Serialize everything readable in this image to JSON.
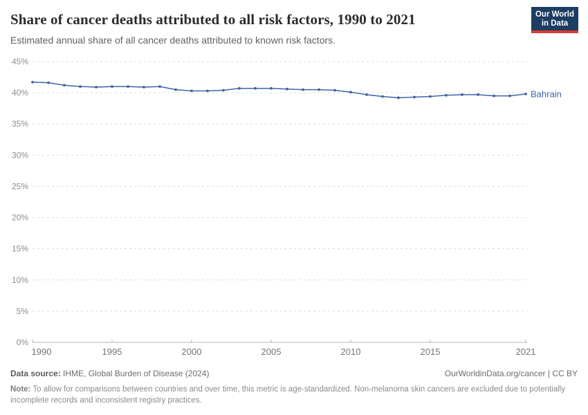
{
  "header": {
    "title": "Share of cancer deaths attributed to all risk factors, 1990 to 2021",
    "subtitle": "Estimated annual share of all cancer deaths attributed to known risk factors.",
    "logo": {
      "line1": "Our World",
      "line2": "in Data",
      "bg_color": "#1d3d63",
      "accent_color": "#d73c34"
    }
  },
  "chart_data": {
    "type": "line",
    "title": "Share of cancer deaths attributed to all risk factors, 1990 to 2021",
    "xlabel": "",
    "ylabel": "",
    "xlim": [
      1990,
      2021
    ],
    "ylim": [
      0,
      45
    ],
    "grid": "horizontal-dashed",
    "legend_position": "end-of-line",
    "x": [
      1990,
      1991,
      1992,
      1993,
      1994,
      1995,
      1996,
      1997,
      1998,
      1999,
      2000,
      2001,
      2002,
      2003,
      2004,
      2005,
      2006,
      2007,
      2008,
      2009,
      2010,
      2011,
      2012,
      2013,
      2014,
      2015,
      2016,
      2017,
      2018,
      2019,
      2020,
      2021
    ],
    "series": [
      {
        "name": "Bahrain",
        "color": "#3d63a5",
        "values": [
          41.7,
          41.6,
          41.2,
          41.0,
          40.9,
          41.0,
          41.0,
          40.9,
          41.0,
          40.5,
          40.3,
          40.3,
          40.4,
          40.7,
          40.7,
          40.7,
          40.6,
          40.5,
          40.5,
          40.4,
          40.1,
          39.7,
          39.4,
          39.2,
          39.3,
          39.4,
          39.6,
          39.7,
          39.7,
          39.5,
          39.5,
          39.8
        ]
      }
    ],
    "yticks": [
      0,
      5,
      10,
      15,
      20,
      25,
      30,
      35,
      40,
      45
    ],
    "ytick_labels": [
      "0%",
      "5%",
      "10%",
      "15%",
      "20%",
      "25%",
      "30%",
      "35%",
      "40%",
      "45%"
    ],
    "xticks": [
      1990,
      1995,
      2000,
      2005,
      2010,
      2015,
      2021
    ],
    "xtick_labels": [
      "1990",
      "1995",
      "2000",
      "2005",
      "2010",
      "2015",
      "2021"
    ],
    "colors": {
      "gridline": "#dadada",
      "axis_line": "#b5b5b5",
      "ytick_text": "#8c8c8c",
      "xtick_text": "#737373"
    }
  },
  "footer": {
    "datasource_label": "Data source:",
    "datasource_value": " IHME, Global Burden of Disease (2024)",
    "rights": "OurWorldinData.org/cancer | CC BY",
    "note_label": "Note:",
    "note_value": " To allow for comparisons between countries and over time, this metric is age-standardized. Non-melanoma skin cancers are excluded due to potentially incomplete records and inconsistent registry practices."
  }
}
